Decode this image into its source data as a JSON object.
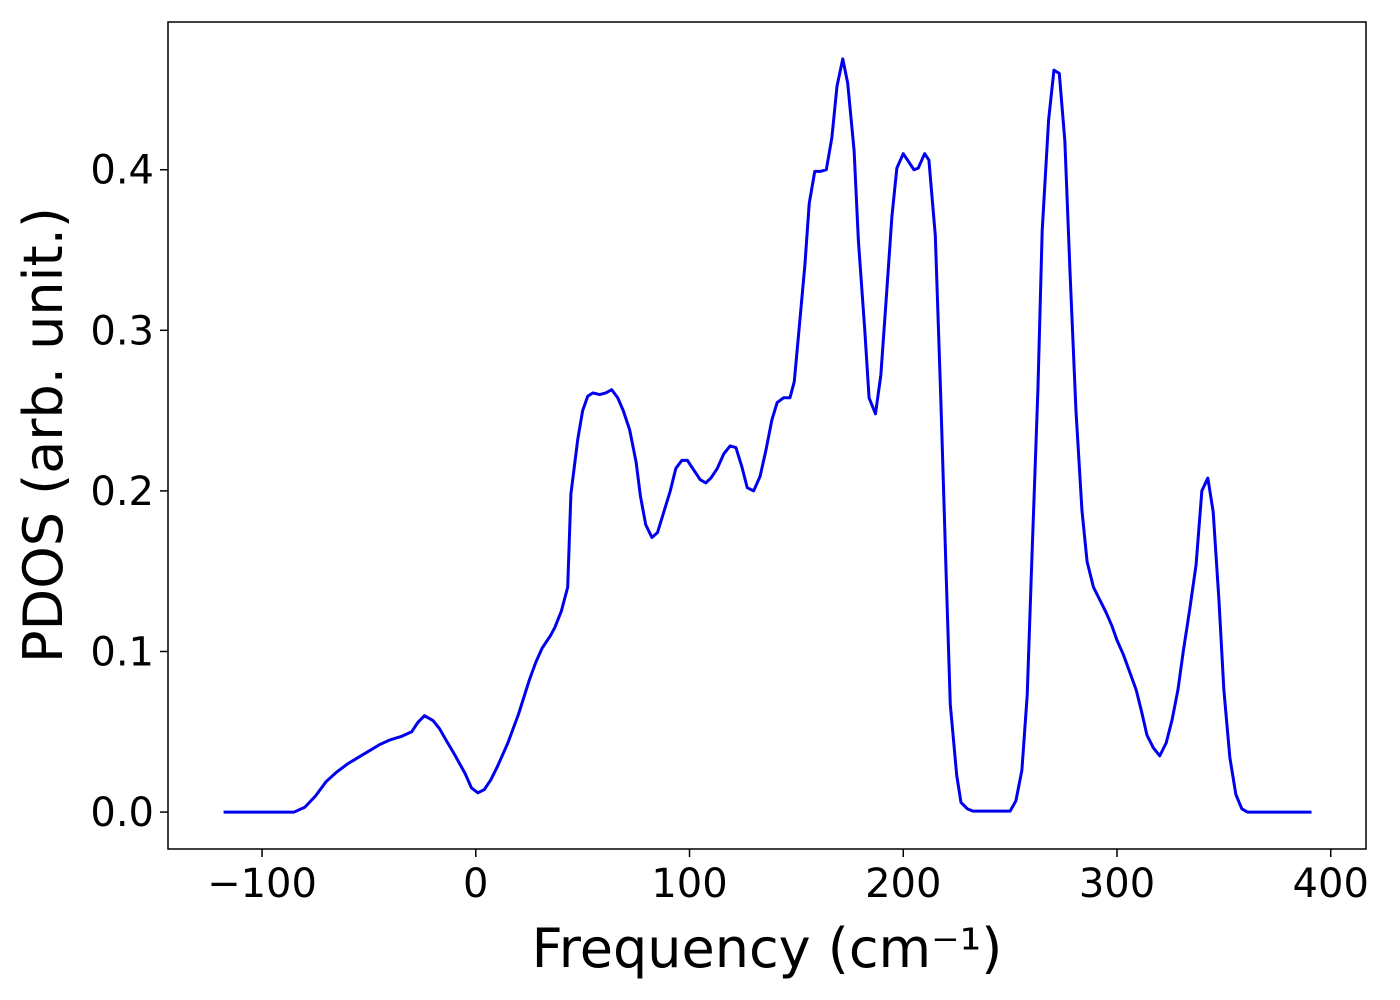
{
  "chart_data": {
    "type": "line",
    "xlabel": "Frequency (cm⁻¹)",
    "ylabel": "PDOS (arb. unit.)",
    "xlim": [
      -144,
      416.5
    ],
    "ylim": [
      -0.023,
      0.492
    ],
    "xticks": [
      {
        "value": -100,
        "label": "−100"
      },
      0,
      100,
      200,
      300,
      400
    ],
    "yticks": [
      {
        "value": 0,
        "label": "0.0"
      },
      0.1,
      0.2,
      0.3,
      0.4
    ],
    "grid": false,
    "series": [
      {
        "name": "PDOS",
        "color": "#0000ee",
        "x": [
          -118,
          -85,
          -80,
          -75,
          -70,
          -65,
          -60,
          -55,
          -50,
          -45,
          -40,
          -35,
          -30,
          -27,
          -24,
          -20,
          -17,
          -14,
          -10,
          -5,
          -2,
          1,
          4,
          7,
          10,
          15,
          20,
          25,
          28,
          31,
          35,
          37,
          40,
          43,
          44.5,
          47.7,
          50,
          52.4,
          54.8,
          58,
          60.8,
          63.6,
          66.4,
          69,
          72,
          75,
          77,
          79.5,
          82.4,
          85,
          88,
          91,
          93.6,
          96.4,
          99,
          102,
          105,
          107.6,
          110,
          113,
          116,
          119,
          121.7,
          124.5,
          127,
          130,
          133,
          135.7,
          138.5,
          141,
          144,
          147,
          149,
          151,
          154,
          156,
          158.6,
          161.4,
          164,
          166.6,
          169,
          171.7,
          174,
          177,
          179,
          182,
          184,
          187,
          189.5,
          192,
          194.7,
          197,
          200,
          202,
          205,
          207,
          210,
          212,
          215,
          217.6,
          220,
          222,
          225,
          227,
          230,
          232.6,
          250,
          252.7,
          255.5,
          258,
          260,
          263,
          265,
          268,
          270.5,
          273,
          275.6,
          278,
          280.8,
          283.6,
          286,
          289,
          292,
          295,
          297.6,
          300,
          303,
          306,
          309,
          311.6,
          314,
          317,
          320,
          323,
          325.7,
          328.5,
          331,
          334,
          337,
          339.7,
          342.5,
          345,
          347.7,
          350,
          352.8,
          355.6,
          358.4,
          361,
          391
        ],
        "values": [
          0,
          0,
          0.003,
          0.01,
          0.019,
          0.025,
          0.03,
          0.034,
          0.038,
          0.042,
          0.045,
          0.047,
          0.05,
          0.056,
          0.06,
          0.057,
          0.052,
          0.045,
          0.036,
          0.024,
          0.015,
          0.012,
          0.014,
          0.02,
          0.028,
          0.043,
          0.061,
          0.082,
          0.093,
          0.102,
          0.11,
          0.115,
          0.125,
          0.14,
          0.198,
          0.232,
          0.25,
          0.259,
          0.261,
          0.26,
          0.261,
          0.263,
          0.258,
          0.25,
          0.238,
          0.218,
          0.197,
          0.179,
          0.171,
          0.174,
          0.187,
          0.2,
          0.214,
          0.219,
          0.219,
          0.213,
          0.207,
          0.205,
          0.208,
          0.214,
          0.223,
          0.228,
          0.227,
          0.215,
          0.202,
          0.2,
          0.209,
          0.225,
          0.244,
          0.255,
          0.258,
          0.258,
          0.268,
          0.297,
          0.341,
          0.379,
          0.399,
          0.399,
          0.4,
          0.42,
          0.452,
          0.469,
          0.454,
          0.412,
          0.356,
          0.3,
          0.258,
          0.248,
          0.272,
          0.319,
          0.371,
          0.401,
          0.41,
          0.406,
          0.4,
          0.401,
          0.41,
          0.406,
          0.359,
          0.256,
          0.151,
          0.067,
          0.023,
          0.006,
          0.002,
          0.0006,
          0.0006,
          0.007,
          0.026,
          0.073,
          0.151,
          0.263,
          0.362,
          0.431,
          0.462,
          0.46,
          0.418,
          0.337,
          0.25,
          0.188,
          0.156,
          0.14,
          0.132,
          0.124,
          0.116,
          0.107,
          0.098,
          0.087,
          0.076,
          0.062,
          0.048,
          0.04,
          0.035,
          0.043,
          0.057,
          0.076,
          0.1,
          0.126,
          0.154,
          0.2,
          0.208,
          0.187,
          0.132,
          0.076,
          0.034,
          0.011,
          0.002,
          0,
          0
        ]
      }
    ]
  }
}
